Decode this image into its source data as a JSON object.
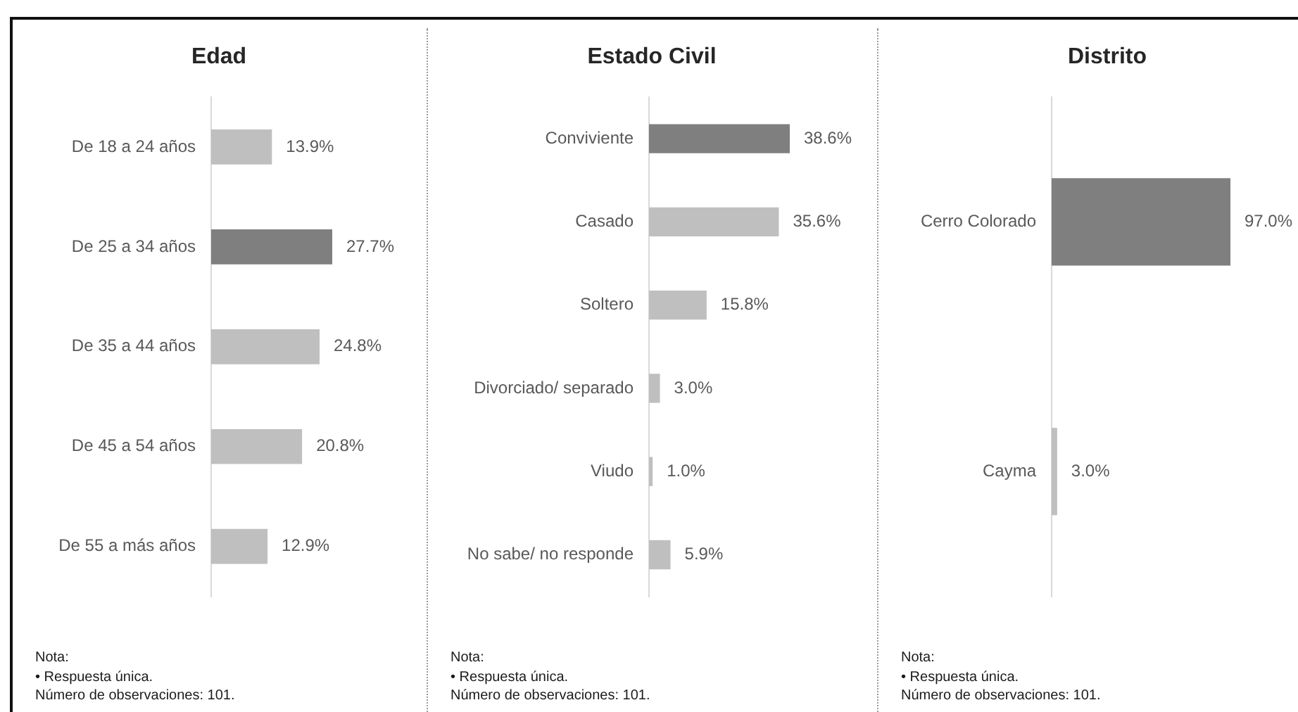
{
  "chart_data": [
    {
      "type": "bar",
      "orientation": "horizontal",
      "title": "Edad",
      "categories": [
        "De 18 a 24 años",
        "De 25 a 34 años",
        "De 35 a 44 años",
        "De 45 a 54 años",
        "De 55 a más años"
      ],
      "values": [
        13.9,
        27.7,
        24.8,
        20.8,
        12.9
      ],
      "value_labels": [
        "13.9%",
        "27.7%",
        "24.8%",
        "20.8%",
        "12.9%"
      ],
      "colors": [
        "#bfbfbf",
        "#7f7f7f",
        "#bfbfbf",
        "#bfbfbf",
        "#bfbfbf"
      ],
      "tick_labels": "y",
      "annotations": [
        "Nota:",
        "• Respuesta única.",
        "Número de observaciones: 101."
      ]
    },
    {
      "type": "bar",
      "orientation": "horizontal",
      "title": "Estado Civil",
      "categories": [
        "Conviviente",
        "Casado",
        "Soltero",
        "Divorciado/ separado",
        "Viudo",
        "No sabe/ no responde"
      ],
      "values": [
        38.6,
        35.6,
        15.8,
        3.0,
        1.0,
        5.9
      ],
      "value_labels": [
        "38.6%",
        "35.6%",
        "15.8%",
        "3.0%",
        "1.0%",
        "5.9%"
      ],
      "colors": [
        "#7f7f7f",
        "#bfbfbf",
        "#bfbfbf",
        "#bfbfbf",
        "#bfbfbf",
        "#bfbfbf"
      ],
      "tick_labels": "y",
      "annotations": [
        "Nota:",
        "• Respuesta única.",
        "Número de observaciones: 101."
      ]
    },
    {
      "type": "bar",
      "orientation": "horizontal",
      "title": "Distrito",
      "categories": [
        "Cerro Colorado",
        "Cayma"
      ],
      "values": [
        97.0,
        3.0
      ],
      "value_labels": [
        "97.0%",
        "3.0%"
      ],
      "colors": [
        "#7f7f7f",
        "#bfbfbf"
      ],
      "tick_labels": "y",
      "annotations": [
        "Nota:",
        "• Respuesta única.",
        "Número de observaciones: 101."
      ]
    }
  ]
}
